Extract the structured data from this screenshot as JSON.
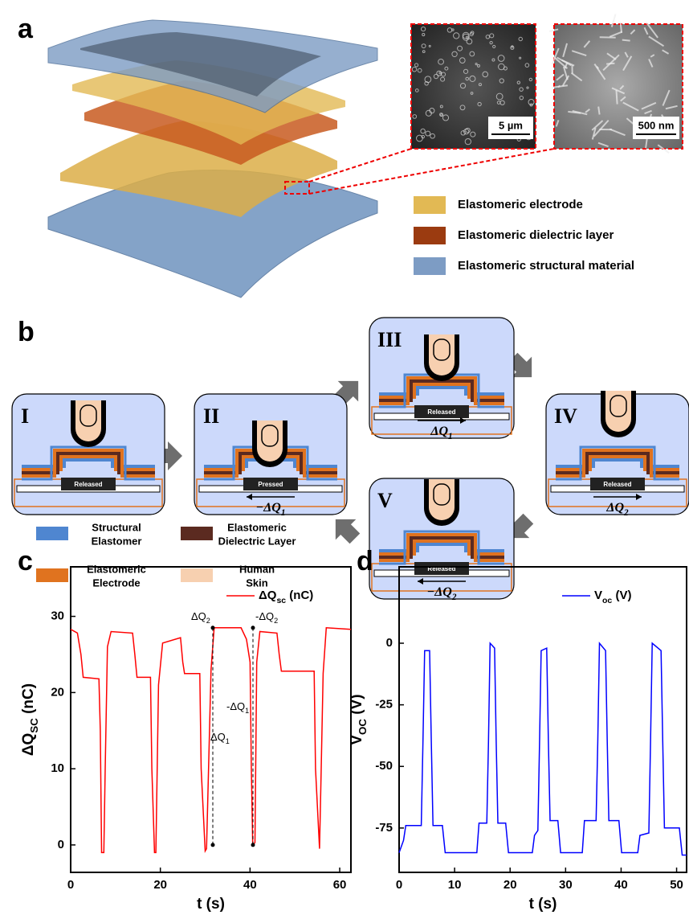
{
  "panel_labels": [
    "a",
    "b",
    "c",
    "d"
  ],
  "panel_a": {
    "scale_bars": [
      "5 µm",
      "500 nm"
    ],
    "legend": [
      {
        "label": "Elastomeric electrode",
        "color": "#e2b954"
      },
      {
        "label": "Elastomeric dielectric layer",
        "color": "#9b3b10"
      },
      {
        "label": "Elastomeric structural material",
        "color": "#7d9cc4"
      }
    ]
  },
  "panel_b": {
    "stages": [
      {
        "label": "I",
        "state": "Released"
      },
      {
        "label": "II",
        "state": "Pressed",
        "charge": [
          "−ΔQ",
          "1"
        ]
      },
      {
        "label": "III",
        "state": "Released",
        "charge": [
          "ΔQ",
          "1"
        ]
      },
      {
        "label": "IV",
        "state": "Released",
        "charge": [
          "ΔQ",
          "2"
        ]
      },
      {
        "label": "V",
        "state": "Released",
        "charge": [
          "−ΔQ",
          "2"
        ]
      }
    ],
    "legend": [
      {
        "lines": [
          "Structural",
          "Elastomer"
        ],
        "color": "#4f86d0"
      },
      {
        "lines": [
          "Elastomeric",
          "Dielectric Layer"
        ],
        "color": "#5b2a20"
      },
      {
        "lines": [
          "Elastomeric",
          "Electrode"
        ],
        "color": "#e0731f"
      },
      {
        "lines": [
          "Human",
          "Skin"
        ],
        "color": "#f7d0b0"
      }
    ]
  },
  "chart_data": [
    {
      "type": "line",
      "xlabel": "t (s)",
      "ylabel": [
        "ΔQ",
        "SC",
        " (nC)"
      ],
      "x": [
        0,
        1.5,
        2.3,
        2.8,
        6.3,
        6.6,
        6.9,
        7.4,
        7.7,
        8.2,
        9,
        13.8,
        14.3,
        14.8,
        17.8,
        18.1,
        18.7,
        19,
        19.6,
        20.5,
        24.5,
        25,
        25.4,
        28.8,
        29.1,
        30,
        30.3,
        31.3,
        32,
        38,
        39.2,
        40,
        40.3,
        40.6,
        41.1,
        41.5,
        42.2,
        46,
        46.5,
        47,
        54.3,
        54.6,
        55.5,
        55.8,
        56.3,
        57,
        62.5
      ],
      "series": [
        {
          "name": [
            "ΔQ",
            "sc",
            " (nC)"
          ],
          "color": "#ff0000",
          "values": [
            28.3,
            27.8,
            25,
            22,
            21.8,
            15,
            -1,
            -1,
            10,
            26,
            28,
            27.8,
            25,
            22,
            22,
            10,
            -1,
            -1,
            21,
            26.5,
            27.2,
            24,
            22.5,
            22.5,
            10,
            -0.8,
            -0.5,
            23,
            28.5,
            28.5,
            27,
            24,
            10,
            0,
            0.3,
            24,
            28,
            27.8,
            25,
            22.8,
            22.8,
            10,
            -0.5,
            8,
            22.5,
            28.5,
            28.3
          ]
        }
      ],
      "xlim": [
        0,
        62.5
      ],
      "ylim": [
        -3.6,
        36.5
      ],
      "xticks": [
        0,
        20,
        40,
        60
      ],
      "yticks": [
        0,
        10,
        20,
        30
      ],
      "legend": "upper right",
      "annotations": [
        [
          "ΔQ",
          "2"
        ],
        [
          "ΔQ",
          "1"
        ],
        [
          "-ΔQ",
          "1"
        ],
        [
          "-ΔQ",
          "2"
        ]
      ]
    },
    {
      "type": "line",
      "xlabel": "t (s)",
      "ylabel": [
        "V",
        "OC",
        " (V)"
      ],
      "x": [
        0,
        0.8,
        1.2,
        4,
        4.3,
        4.6,
        5.5,
        5.8,
        6.1,
        7.8,
        8.3,
        14,
        14.4,
        15.8,
        16.1,
        16.4,
        17.2,
        17.5,
        17.8,
        19.2,
        19.7,
        24,
        24.4,
        25,
        25.3,
        25.6,
        26.6,
        26.9,
        27.2,
        28.6,
        29.1,
        33,
        33.4,
        35.5,
        35.8,
        36.1,
        37.2,
        37.5,
        37.8,
        39.6,
        40.1,
        43,
        43.4,
        45,
        45.3,
        45.6,
        47.2,
        47.5,
        47.8,
        50.5,
        51,
        51.8
      ],
      "series": [
        {
          "name": [
            "V",
            "oc",
            " (V)"
          ],
          "color": "#0000ff",
          "values": [
            -85,
            -80,
            -74,
            -74,
            -40,
            -3,
            -3,
            -40,
            -74,
            -74,
            -85,
            -85,
            -73,
            -73,
            -40,
            0,
            -2,
            -40,
            -73,
            -73,
            -85,
            -85,
            -78,
            -76,
            -40,
            -3,
            -2,
            -40,
            -72,
            -72,
            -85,
            -85,
            -72,
            -72,
            -40,
            0,
            -3,
            -40,
            -72,
            -72,
            -85,
            -85,
            -78,
            -77,
            -40,
            0,
            -3,
            -40,
            -75,
            -75,
            -86,
            -86
          ]
        }
      ],
      "xlim": [
        0,
        51.8
      ],
      "ylim": [
        -93,
        31
      ],
      "xticks": [
        0,
        10,
        20,
        30,
        40,
        50
      ],
      "yticks": [
        -75,
        -50,
        -25,
        0
      ],
      "legend": "upper right"
    }
  ]
}
